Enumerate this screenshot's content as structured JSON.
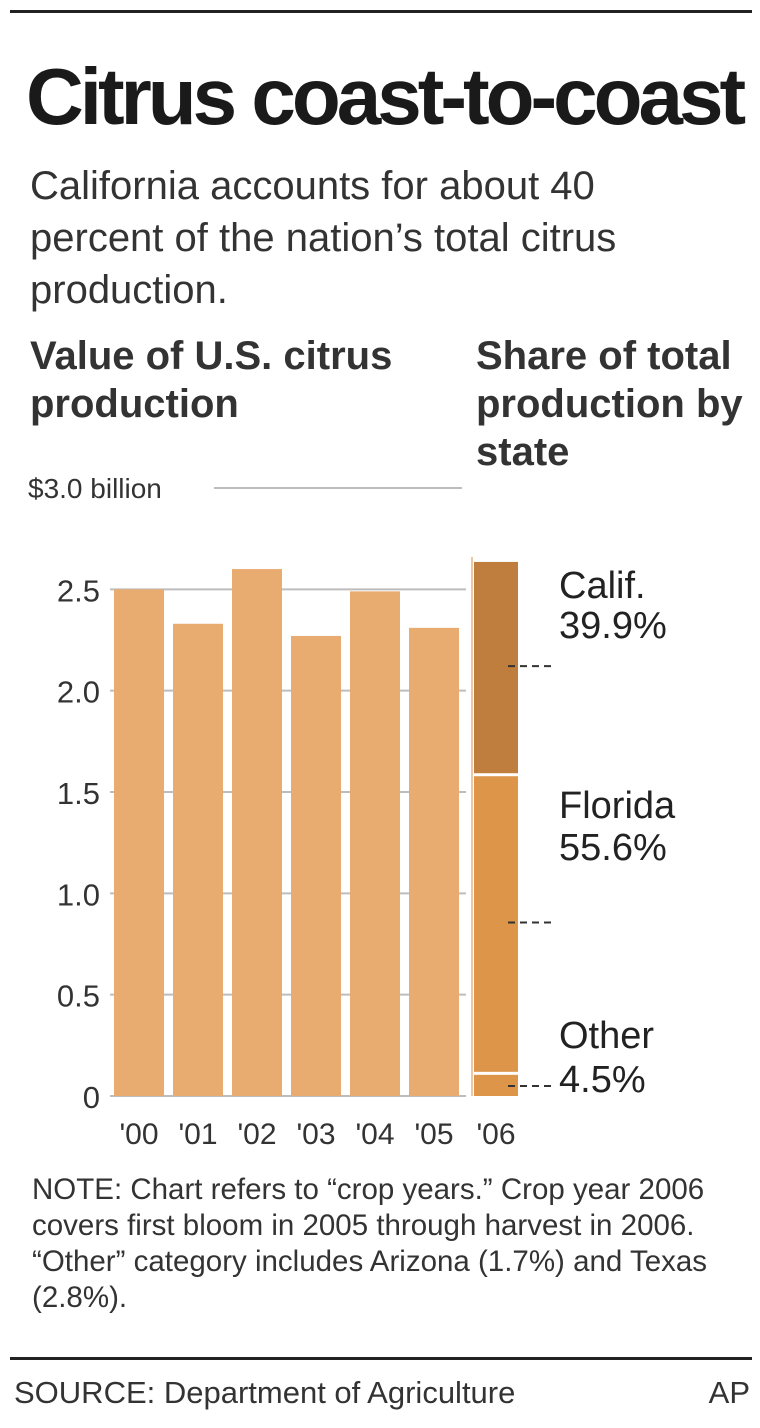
{
  "header": {
    "title": "Citrus coast-to-coast",
    "subtitle": "California accounts for about 40 percent of the nation’s total citrus production."
  },
  "chart_data": [
    {
      "type": "bar",
      "title": "Value of U.S. citrus production",
      "unit_label": "$3.0 billion",
      "categories": [
        "'00",
        "'01",
        "'02",
        "'03",
        "'04",
        "'05"
      ],
      "values": [
        2.5,
        2.33,
        2.6,
        2.27,
        2.49,
        2.31
      ],
      "y_ticks": [
        "0",
        "0.5",
        "1.0",
        "1.5",
        "2.0",
        "2.5"
      ],
      "ylim": [
        0,
        3.0
      ],
      "color": "#e8ab70"
    },
    {
      "type": "bar",
      "stacked": true,
      "title": "Share of total production by state",
      "category": "'06",
      "total": 2.65,
      "series": [
        {
          "name": "Other",
          "value": 4.5,
          "label": "4.5%",
          "color": "#dd9549"
        },
        {
          "name": "Florida",
          "value": 55.6,
          "label": "55.6%",
          "color": "#dd9549"
        },
        {
          "name": "Calif.",
          "value": 39.9,
          "label": "39.9%",
          "color": "#c07e3e"
        }
      ]
    }
  ],
  "footer": {
    "note": "NOTE: Chart refers to “crop years.” Crop year 2006 covers first bloom in 2005 through harvest in 2006. “Other” category includes Arizona (1.7%) and Texas (2.8%).",
    "source": "SOURCE: Department of Agriculture",
    "credit": "AP"
  }
}
